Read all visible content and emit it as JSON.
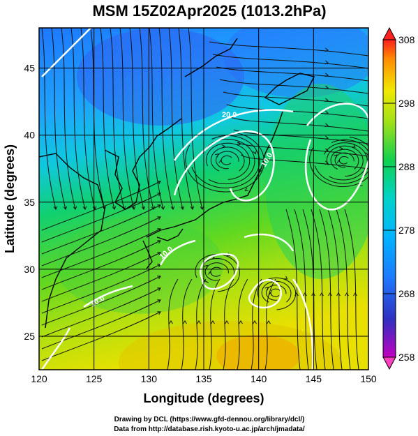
{
  "title": "MSM 15Z02Apr2025 (1013.2hPa)",
  "map": {
    "xlabel": "Longitude (degrees)",
    "ylabel": "Latitude  (degrees)",
    "lon_range": [
      120,
      150
    ],
    "lat_range": [
      22.5,
      48
    ],
    "lon_ticks": [
      "120",
      "125",
      "130",
      "135",
      "140",
      "145",
      "150"
    ],
    "lat_ticks": [
      "25",
      "30",
      "35",
      "40",
      "45"
    ],
    "grid": true,
    "contour_labels": [
      "20.0",
      "10.0",
      "10.0",
      "10.0"
    ]
  },
  "colorbar": {
    "ticks": [
      "308",
      "298",
      "288",
      "278",
      "268",
      "258"
    ],
    "range": [
      258,
      308
    ]
  },
  "credits": {
    "line1": "Drawing by DCL (https://www.gfd-dennou.org/library/dcl/)",
    "line2": "Data from http://database.rish.kyoto-u.ac.jp/arch/jmadata/"
  }
}
